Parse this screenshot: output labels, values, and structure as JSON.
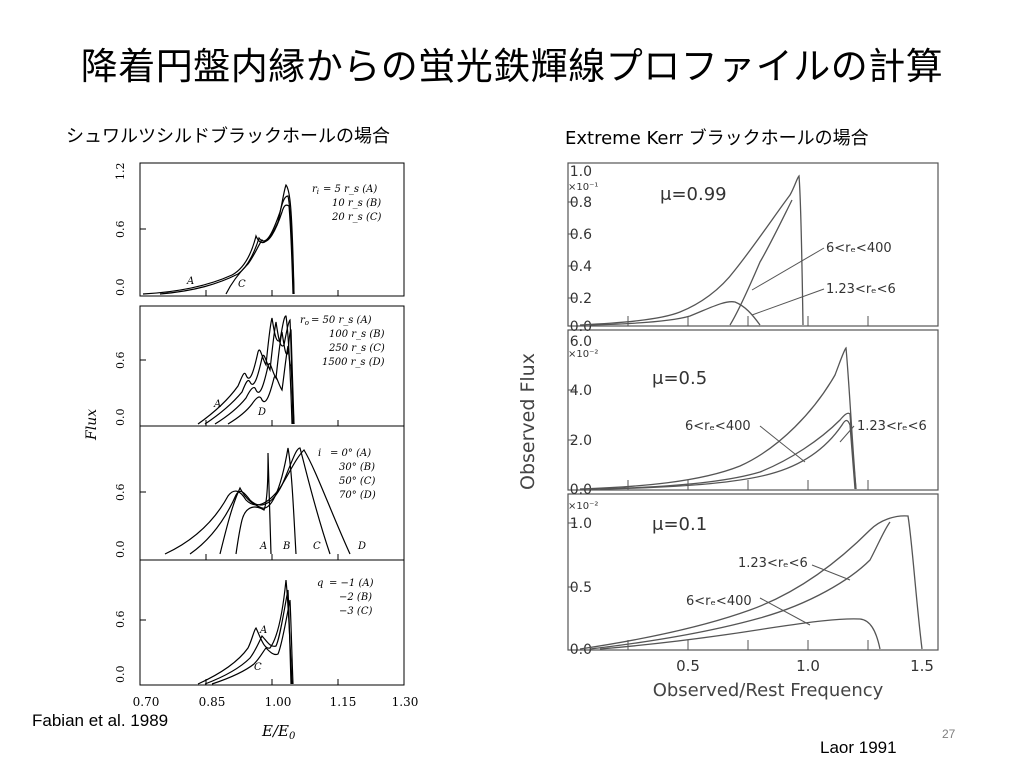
{
  "slide": {
    "title": "降着円盤内縁からの蛍光鉄輝線プロファイルの計算",
    "page_number": "27"
  },
  "left_figure": {
    "caption": "シュワルツシルドブラックホールの場合",
    "reference": "Fabian et al. 1989",
    "y_axis_label": "Flux",
    "x_axis_label": "E/E",
    "x_axis_label_sub": "0",
    "x_ticks": [
      "0.70",
      "0.85",
      "1.00",
      "1.15",
      "1.30"
    ],
    "panels": [
      {
        "y_ticks": [
          "0.0",
          "0.6",
          "1.2"
        ],
        "legend_param": "r",
        "legend_param_sub": "i",
        "legend": [
          "= 5  r_s (A)",
          "10  r_s (B)",
          "20  r_s (C)"
        ],
        "curve_labels": [
          "A",
          "C"
        ]
      },
      {
        "y_ticks": [
          "0.0",
          "0.6"
        ],
        "legend_param": "r",
        "legend_param_sub": "o",
        "legend": [
          "= 50  r_s (A)",
          "100  r_s (B)",
          "250  r_s (C)",
          "1500 r_s (D)"
        ],
        "curve_labels": [
          "A",
          "D"
        ]
      },
      {
        "y_ticks": [
          "0.0",
          "0.6"
        ],
        "legend_param": "i",
        "legend": [
          "= 0° (A)",
          "30° (B)",
          "50° (C)",
          "70° (D)"
        ],
        "curve_labels": [
          "A",
          "B",
          "C",
          "D"
        ]
      },
      {
        "y_ticks": [
          "0.0",
          "0.6"
        ],
        "legend_param": "q",
        "legend": [
          "= −1 (A)",
          "−2 (B)",
          "−3 (C)"
        ],
        "curve_labels": [
          "A",
          "C"
        ]
      }
    ]
  },
  "right_figure": {
    "caption": "Extreme Kerr ブラックホールの場合",
    "reference": "Laor 1991",
    "y_axis_label": "Observed Flux",
    "x_axis_label": "Observed/Rest Frequency",
    "x_ticks": [
      "0.5",
      "1.0",
      "1.5"
    ],
    "panels": [
      {
        "mu": "μ=0.99",
        "scale": "×10⁻¹",
        "y_ticks": [
          "0.0",
          "0.2",
          "0.4",
          "0.6",
          "0.8",
          "1.0"
        ],
        "annotations": [
          "6<rₑ<400",
          "1.23<rₑ<6"
        ]
      },
      {
        "mu": "μ=0.5",
        "scale": "×10⁻²",
        "y_ticks": [
          "0.0",
          "2.0",
          "4.0",
          "6.0"
        ],
        "annotations": [
          "6<rₑ<400",
          "1.23<rₑ<6"
        ]
      },
      {
        "mu": "μ=0.1",
        "scale": "×10⁻²",
        "y_ticks": [
          "0.0",
          "0.5",
          "1.0"
        ],
        "annotations": [
          "1.23<rₑ<6",
          "6<rₑ<400"
        ]
      }
    ]
  }
}
